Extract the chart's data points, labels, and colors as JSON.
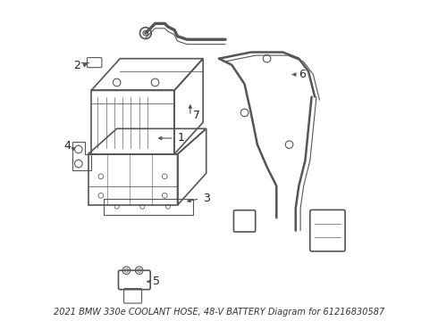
{
  "title": "2021 BMW 330e COOLANT HOSE, 48-V BATTERY Diagram for 61216830587",
  "background_color": "#ffffff",
  "line_color": "#555555",
  "label_color": "#222222",
  "font_size_label": 9,
  "font_size_title": 7,
  "fig_width": 4.9,
  "fig_height": 3.6,
  "dpi": 100
}
